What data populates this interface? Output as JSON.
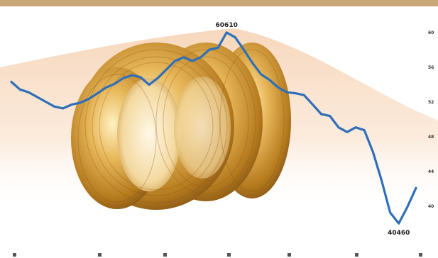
{
  "chart_data": {
    "type": "line",
    "title": "",
    "xlabel": "",
    "ylabel": "",
    "grid": false,
    "legend": "none",
    "ylim": [
      39500,
      61500
    ],
    "y_tick_labels": [
      "60",
      "56",
      "52",
      "48",
      "44",
      "40"
    ],
    "x_tick_labels": [
      "",
      ""
    ],
    "series": [
      {
        "color": "#2f6fb8",
        "values": [
          55400,
          54600,
          54300,
          53800,
          53300,
          52800,
          52600,
          53000,
          53200,
          53600,
          54200,
          54800,
          55200,
          55800,
          56100,
          55900,
          55100,
          55800,
          56700,
          57600,
          58000,
          57600,
          58000,
          58800,
          59000,
          60610,
          60100,
          58800,
          57400,
          56200,
          55600,
          54800,
          54300,
          54200,
          54000,
          53000,
          52000,
          51800,
          50600,
          50100,
          50600,
          50300,
          48000,
          45000,
          41600,
          40460,
          42200,
          44200
        ]
      }
    ],
    "annotations": [
      {
        "label": "60610",
        "value": 60610
      },
      {
        "label": "40460",
        "value": 40460
      }
    ],
    "colors": {
      "line": "#2f6fb8",
      "band": "#f2c9a6",
      "rule": "#c9a777",
      "coil": "#c9952e"
    }
  }
}
